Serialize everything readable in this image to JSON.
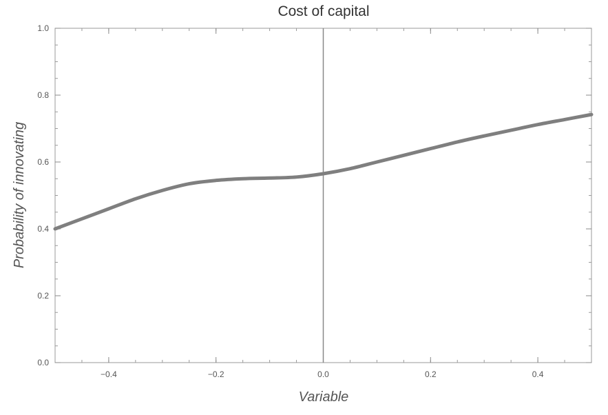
{
  "chart_data": {
    "type": "line",
    "title": "Cost of capital",
    "xlabel": "Variable",
    "ylabel": "Probability of innovating",
    "xlim": [
      -0.5,
      0.5
    ],
    "ylim": [
      0.0,
      1.0
    ],
    "x_ticks": [
      -0.4,
      -0.2,
      0.0,
      0.2,
      0.4
    ],
    "x_tick_labels": [
      "−0.4",
      "−0.2",
      "0.0",
      "0.2",
      "0.4"
    ],
    "y_ticks": [
      0.0,
      0.2,
      0.4,
      0.6,
      0.8,
      1.0
    ],
    "y_tick_labels": [
      "0.0",
      "0.2",
      "0.4",
      "0.6",
      "0.8",
      "1.0"
    ],
    "reference_line_x": 0.0,
    "grid": false,
    "series": [
      {
        "color": "#7f7f7f",
        "x": [
          -0.5,
          -0.45,
          -0.4,
          -0.35,
          -0.3,
          -0.25,
          -0.2,
          -0.15,
          -0.1,
          -0.05,
          0.0,
          0.05,
          0.1,
          0.15,
          0.2,
          0.25,
          0.3,
          0.35,
          0.4,
          0.45,
          0.5
        ],
        "y": [
          0.4,
          0.43,
          0.46,
          0.49,
          0.515,
          0.535,
          0.545,
          0.55,
          0.552,
          0.555,
          0.565,
          0.58,
          0.6,
          0.62,
          0.64,
          0.66,
          0.678,
          0.695,
          0.712,
          0.727,
          0.742
        ]
      }
    ]
  }
}
